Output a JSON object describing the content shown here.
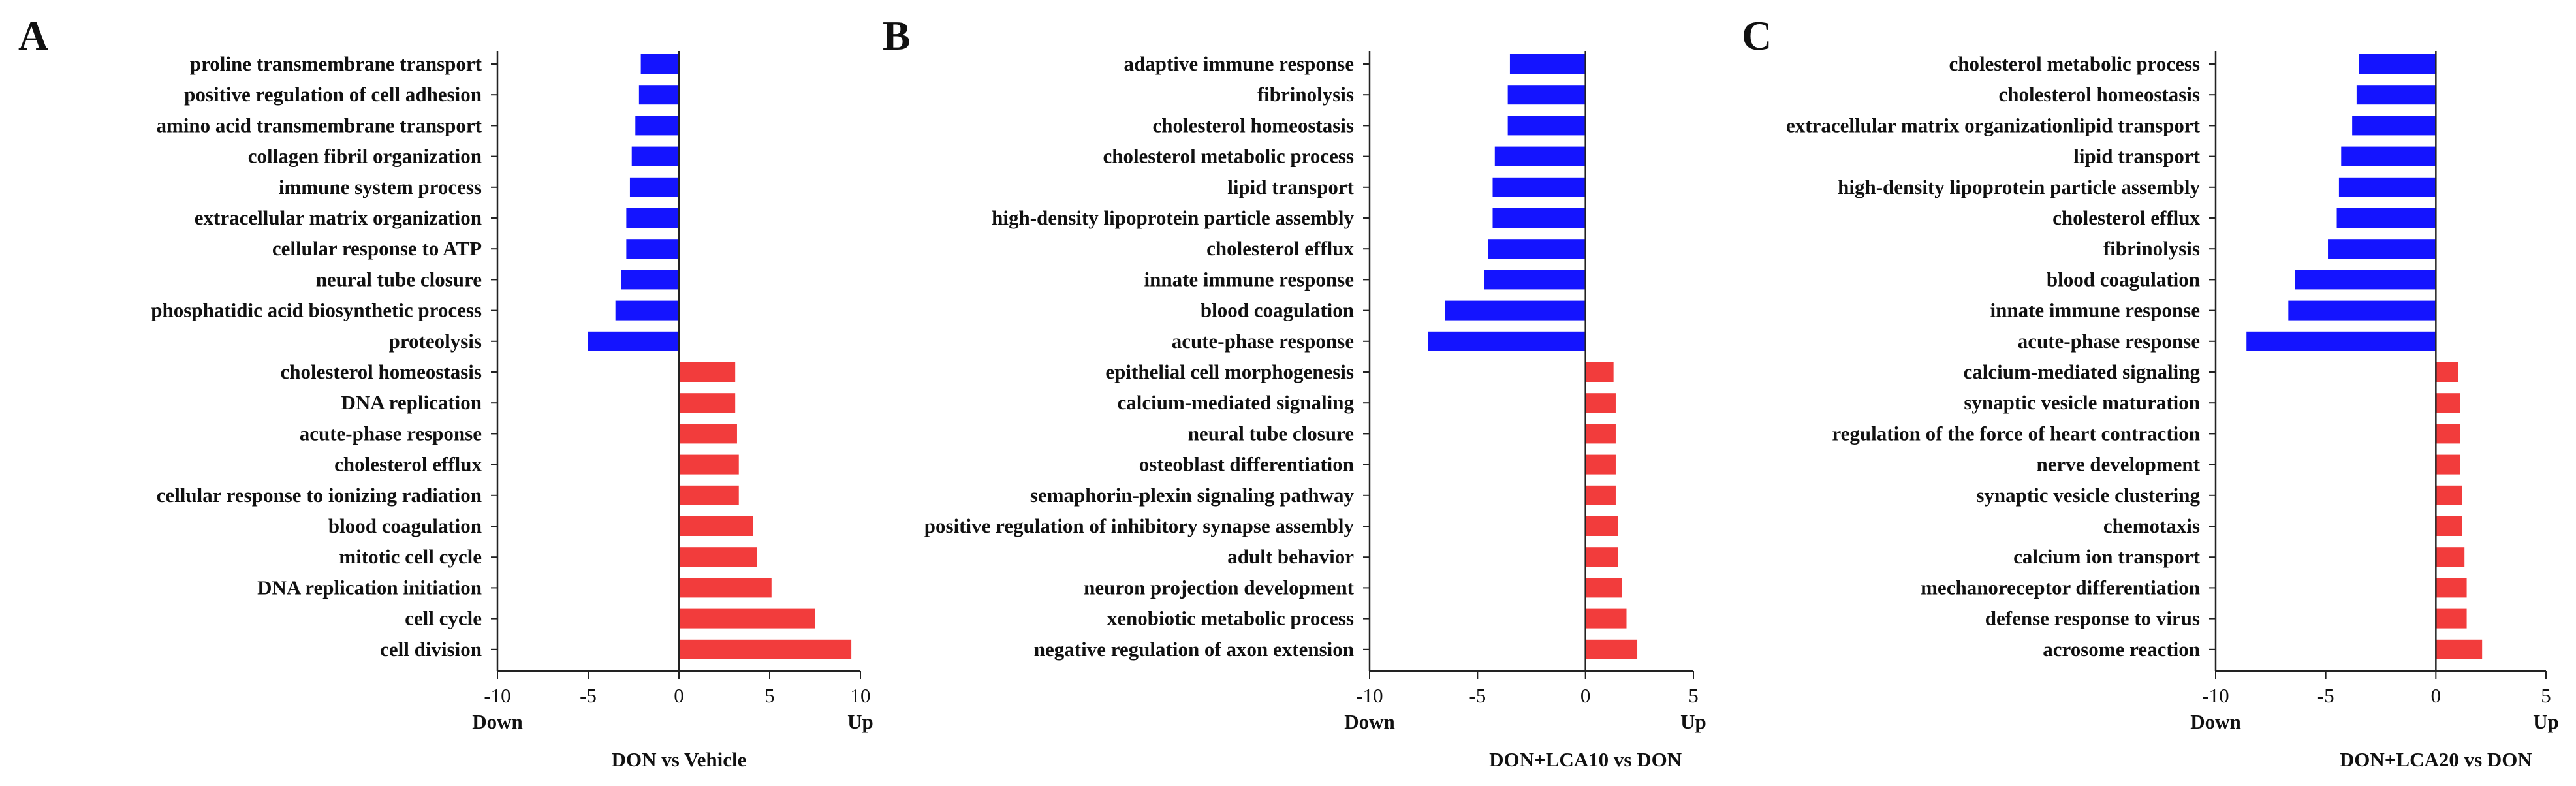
{
  "chart_data": [
    {
      "type": "bar",
      "orientation": "horizontal",
      "panel": "A",
      "title": "",
      "xlabel": "DON vs Vehicle",
      "direction_labels": {
        "down": "Down",
        "up": "Up"
      },
      "xlim": [
        -10,
        10
      ],
      "xticks": [
        -10,
        -5,
        0,
        5,
        10
      ],
      "colors": {
        "down": "#1414ff",
        "up": "#f23c3c"
      },
      "categories": [
        "proline transmembrane transport",
        "positive regulation of cell adhesion",
        "amino acid transmembrane transport",
        "collagen fibril organization",
        "immune system process",
        "extracellular matrix organization",
        "cellular response to ATP",
        "neural tube closure",
        "phosphatidic acid biosynthetic process",
        "proteolysis",
        "cholesterol homeostasis",
        "DNA replication",
        "acute-phase response",
        "cholesterol efflux",
        "cellular response to ionizing radiation",
        "blood coagulation",
        "mitotic cell cycle",
        "DNA replication initiation",
        "cell cycle",
        "cell division"
      ],
      "values": [
        -2.1,
        -2.2,
        -2.4,
        -2.6,
        -2.7,
        -2.9,
        -2.9,
        -3.2,
        -3.5,
        -5.0,
        3.1,
        3.1,
        3.2,
        3.3,
        3.3,
        4.1,
        4.3,
        5.1,
        7.5,
        9.5
      ]
    },
    {
      "type": "bar",
      "orientation": "horizontal",
      "panel": "B",
      "title": "",
      "xlabel": "DON+LCA10 vs DON",
      "direction_labels": {
        "down": "Down",
        "up": "Up"
      },
      "xlim": [
        -10,
        5
      ],
      "xticks": [
        -10,
        -5,
        0,
        5
      ],
      "colors": {
        "down": "#1414ff",
        "up": "#f23c3c"
      },
      "categories": [
        "adaptive immune response",
        "fibrinolysis",
        "cholesterol homeostasis",
        "cholesterol metabolic process",
        "lipid transport",
        "high-density lipoprotein particle assembly",
        "cholesterol efflux",
        "innate immune response",
        "blood coagulation",
        "acute-phase response",
        "epithelial cell morphogenesis",
        "calcium-mediated signaling",
        "neural tube closure",
        "osteoblast differentiation",
        "semaphorin-plexin signaling pathway",
        "positive regulation of inhibitory synapse assembly",
        "adult behavior",
        "neuron projection development",
        "xenobiotic metabolic process",
        "negative regulation of axon extension"
      ],
      "values": [
        -3.5,
        -3.6,
        -3.6,
        -4.2,
        -4.3,
        -4.3,
        -4.5,
        -4.7,
        -6.5,
        -7.3,
        1.3,
        1.4,
        1.4,
        1.4,
        1.4,
        1.5,
        1.5,
        1.7,
        1.9,
        2.4
      ]
    },
    {
      "type": "bar",
      "orientation": "horizontal",
      "panel": "C",
      "title": "",
      "xlabel": "DON+LCA20 vs DON",
      "direction_labels": {
        "down": "Down",
        "up": "Up"
      },
      "xlim": [
        -10,
        5
      ],
      "xticks": [
        -10,
        -5,
        0,
        5
      ],
      "colors": {
        "down": "#1414ff",
        "up": "#f23c3c"
      },
      "categories": [
        "cholesterol metabolic process",
        "cholesterol homeostasis",
        "extracellular matrix organizationlipid transport",
        "lipid transport",
        "high-density lipoprotein particle assembly",
        "cholesterol efflux",
        "fibrinolysis",
        "blood coagulation",
        "innate immune response",
        "acute-phase response",
        "calcium-mediated signaling",
        "synaptic vesicle maturation",
        "regulation of the force of heart contraction",
        "nerve development",
        "synaptic vesicle clustering",
        "chemotaxis",
        "calcium ion transport",
        "mechanoreceptor differentiation",
        "defense response to virus",
        "acrosome reaction"
      ],
      "values": [
        -3.5,
        -3.6,
        -3.8,
        -4.3,
        -4.4,
        -4.5,
        -4.9,
        -6.4,
        -6.7,
        -8.6,
        1.0,
        1.1,
        1.1,
        1.1,
        1.2,
        1.2,
        1.3,
        1.4,
        1.4,
        2.1
      ]
    }
  ]
}
